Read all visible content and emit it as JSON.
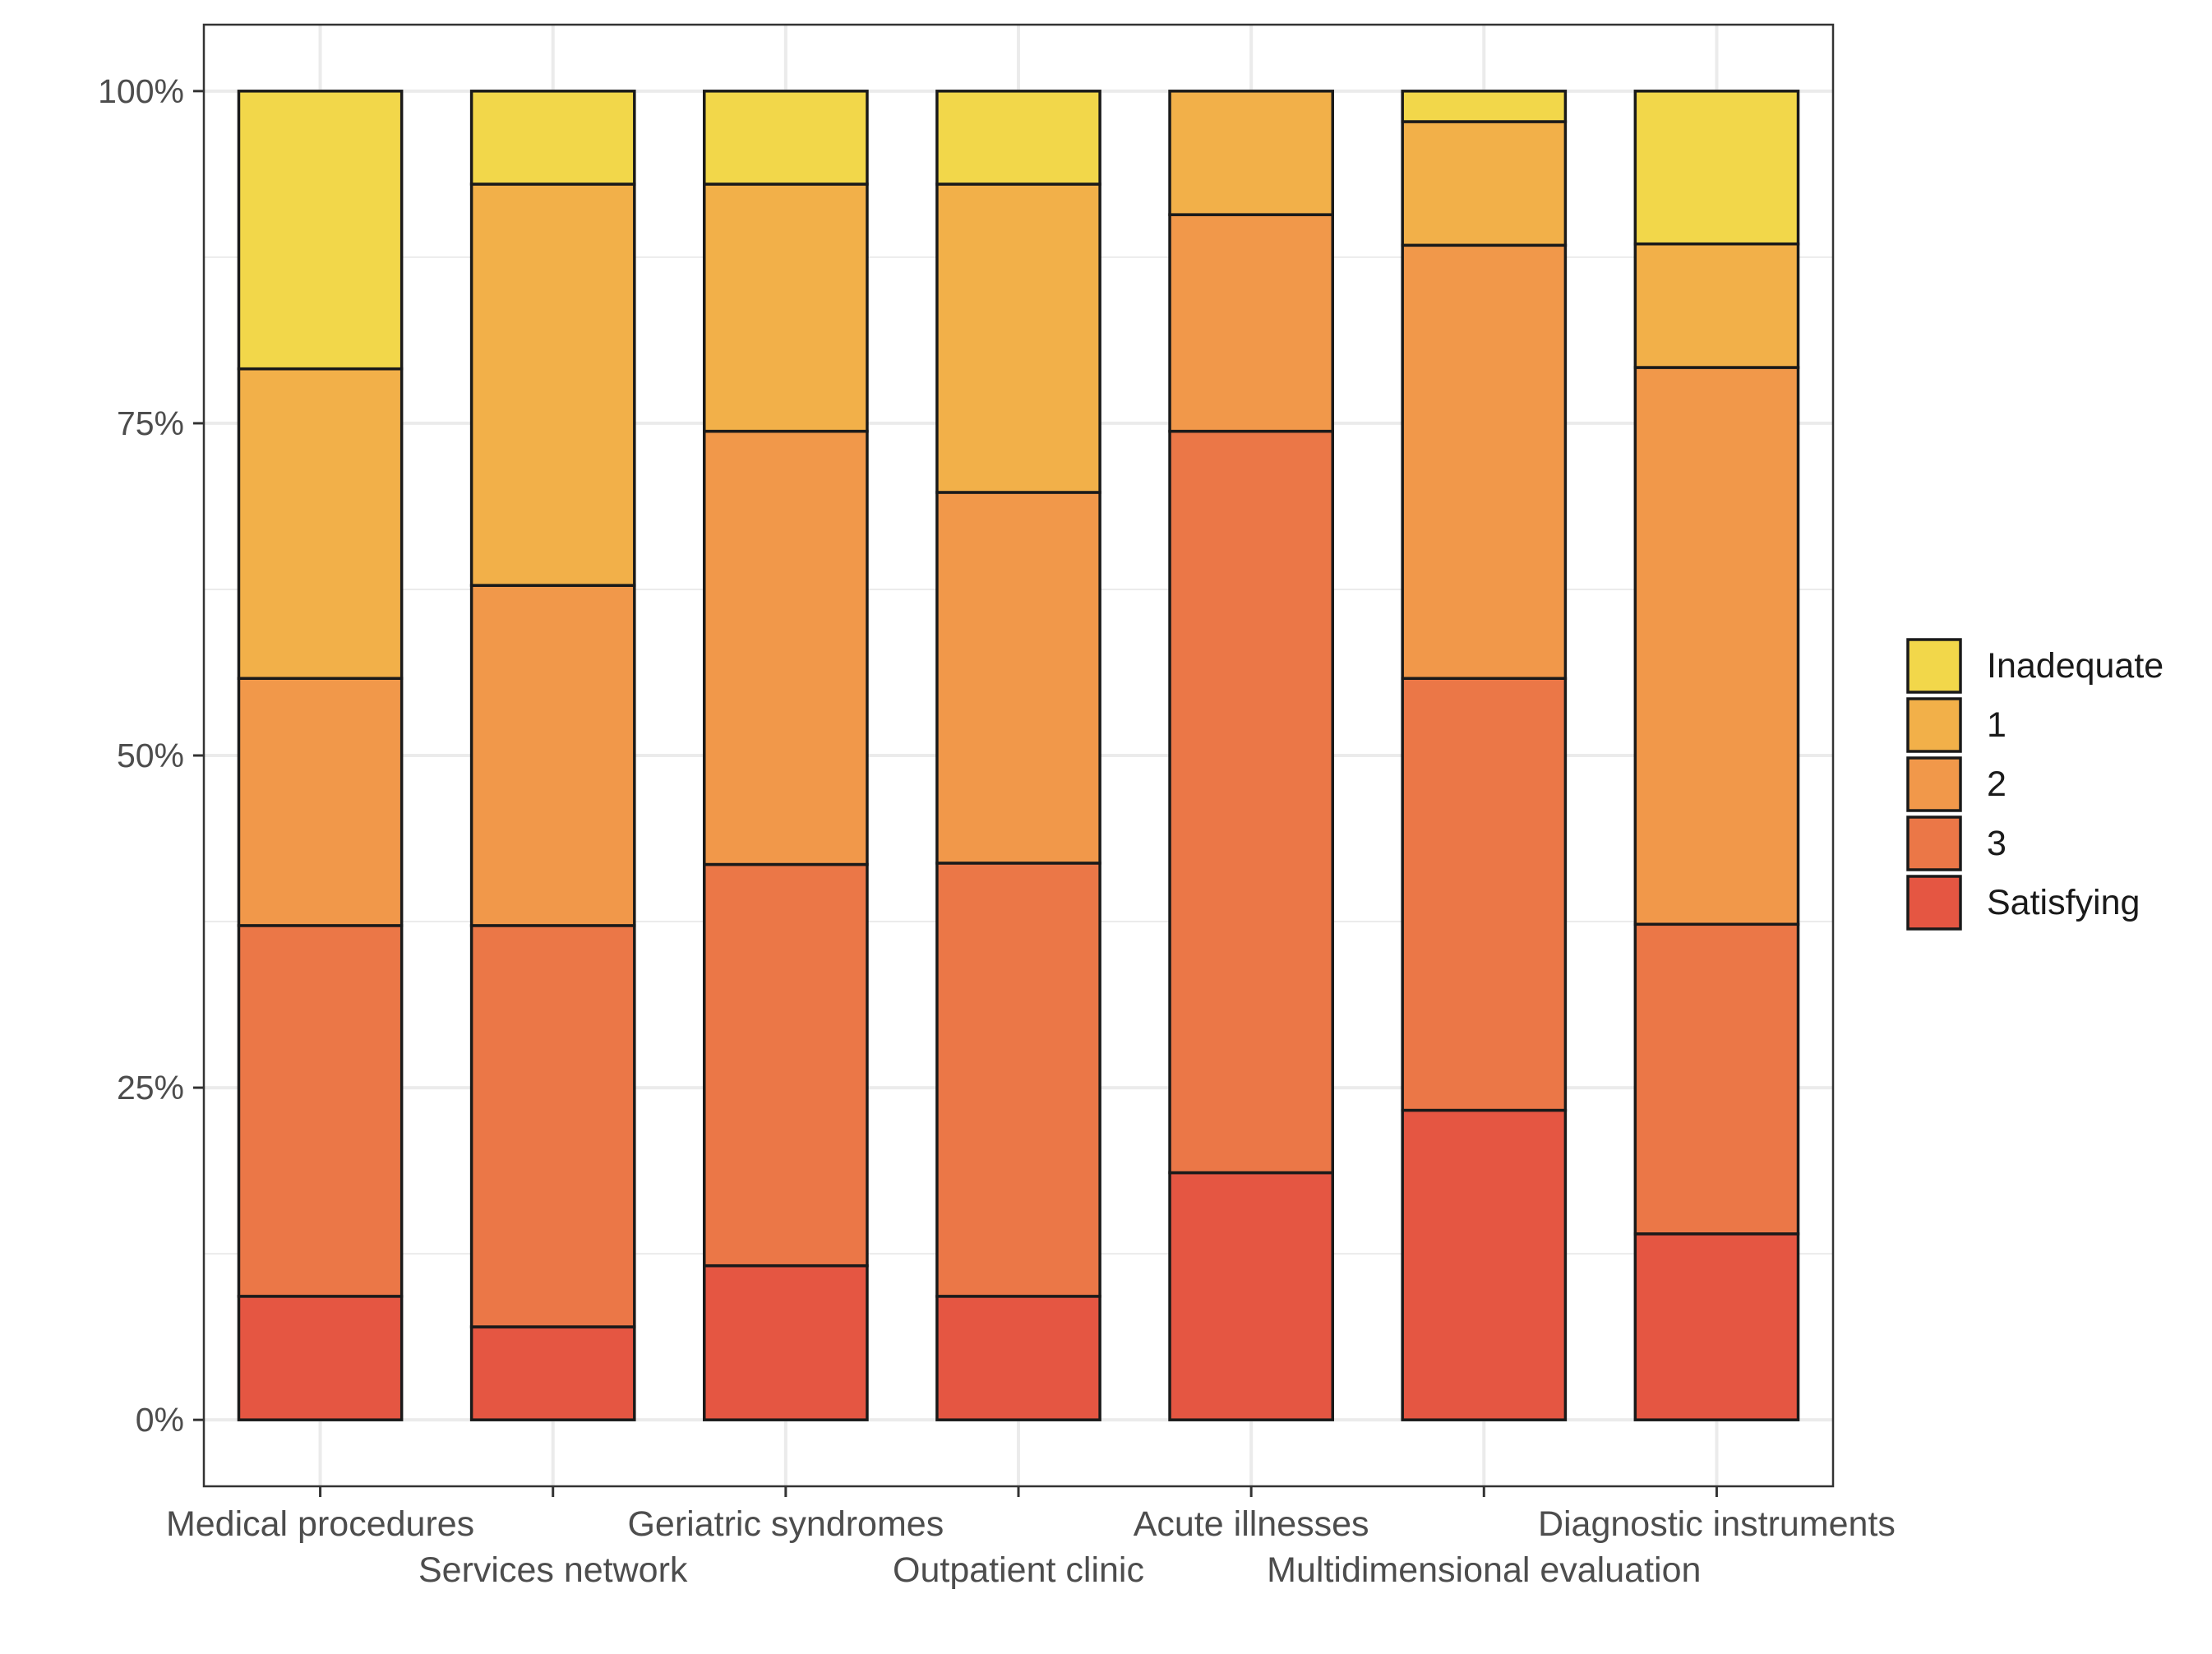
{
  "chart_data": {
    "type": "bar",
    "stacked": true,
    "percent_axis": true,
    "categories": [
      "Medical procedures",
      "Services network",
      "Geriatric syndromes",
      "Outpatient clinic",
      "Acute illnesses",
      "Multidimensional evaluation",
      "Diagnostic instruments"
    ],
    "series": [
      {
        "name": "Satisfying",
        "color": "#E55642",
        "values": [
          9.3,
          7.0,
          11.6,
          9.3,
          18.6,
          23.3,
          14.0
        ]
      },
      {
        "name": "3",
        "color": "#EB7747",
        "values": [
          27.9,
          30.2,
          30.2,
          32.6,
          55.8,
          32.5,
          23.3
        ]
      },
      {
        "name": "2",
        "color": "#F1984A",
        "values": [
          18.6,
          25.6,
          32.6,
          27.9,
          16.3,
          32.6,
          41.9
        ]
      },
      {
        "name": "1",
        "color": "#F2B049",
        "values": [
          23.3,
          30.2,
          18.6,
          23.2,
          9.3,
          9.3,
          9.3
        ]
      },
      {
        "name": "Inadequate",
        "color": "#F2D74A",
        "values": [
          20.9,
          7.0,
          7.0,
          7.0,
          0.0,
          2.3,
          11.5
        ]
      }
    ],
    "ylim": [
      -5,
      105
    ],
    "yticks": [
      0,
      25,
      50,
      75,
      100
    ],
    "ytick_labels": [
      "0%",
      "25%",
      "50%",
      "75%",
      "100%"
    ],
    "xlabel": "",
    "ylabel": "",
    "title": "",
    "grid": true,
    "legend": {
      "position": "right",
      "order": [
        "Inadequate",
        "1",
        "2",
        "3",
        "Satisfying"
      ]
    },
    "colors": {
      "background": "#FFFFFF",
      "gridline": "#EBEBEB",
      "panel_border": "#333333",
      "bar_outline": "#1A1A1A"
    }
  }
}
